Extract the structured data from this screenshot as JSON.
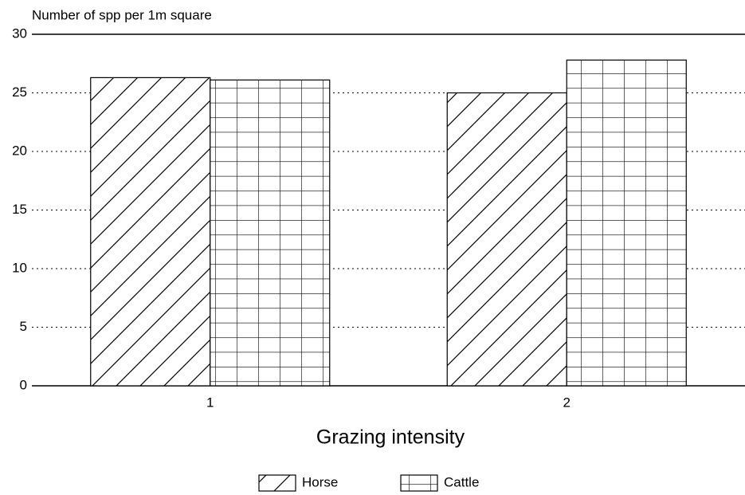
{
  "chart_data": {
    "type": "bar",
    "y_label": "Number of spp per 1m square",
    "x_label": "Grazing intensity",
    "categories": [
      "1",
      "2"
    ],
    "series": [
      {
        "name": "Horse",
        "color": "#000000",
        "hatch": "diagonal",
        "values": [
          26.3,
          25.0
        ]
      },
      {
        "name": "Cattle",
        "color": "#000000",
        "hatch": "grid",
        "values": [
          26.1,
          27.8
        ]
      }
    ],
    "ylim": [
      0,
      30
    ],
    "yticks": [
      0,
      5,
      10,
      15,
      20,
      25,
      30
    ],
    "grid": true
  }
}
